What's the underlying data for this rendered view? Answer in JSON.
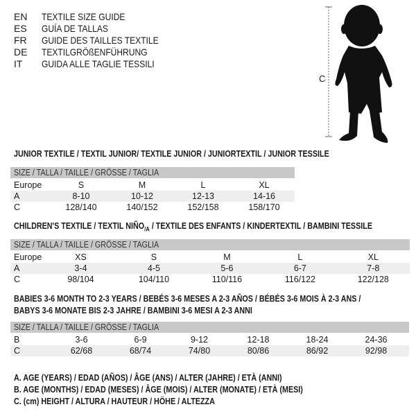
{
  "languages": [
    {
      "code": "EN",
      "text": "TEXTILE SIZE GUIDE"
    },
    {
      "code": "ES",
      "text": "GUÍA DE TALLAS"
    },
    {
      "code": "FR",
      "text": "GUIDE DES TAILLES TEXTILE"
    },
    {
      "code": "DE",
      "text": "TEXTILGRÖßENFÜHRUNG"
    },
    {
      "code": "IT",
      "text": "GUIDA ALLE TAGLIE TESSILI"
    }
  ],
  "figure": {
    "measure_label": "C",
    "silhouette": "baby-silhouette"
  },
  "header_label": "SIZE / TALLA / TAILLE / GRÖSSE / TAGLIA",
  "junior": {
    "title": "JUNIOR TEXTILE / TEXTIL JUNIOR/ TEXTILE JUNIOR / JUNIORTEXTIL / JUNIOR TESSILE",
    "rows": [
      {
        "label": "Europe",
        "values": [
          "S",
          "M",
          "L",
          "XL"
        ]
      },
      {
        "label": "A",
        "values": [
          "8-10",
          "10-12",
          "12-13",
          "14-16"
        ]
      },
      {
        "label": "C",
        "values": [
          "128/140",
          "140/152",
          "152/158",
          "158/170"
        ]
      }
    ]
  },
  "children": {
    "title_a": "CHILDREN'S TEXTILE / TEXTIL NIÑO",
    "title_sub": "/A",
    "title_b": " / TEXTILE DES ENFANTS / KINDERTEXTIL / BAMBINI TESSILE",
    "rows": [
      {
        "label": "Europe",
        "values": [
          "XS",
          "S",
          "M",
          "L",
          "XL"
        ]
      },
      {
        "label": "A",
        "values": [
          "3-4",
          "4-5",
          "5-6",
          "6-7",
          "7-8"
        ]
      },
      {
        "label": "C",
        "values": [
          "98/104",
          "104/110",
          "110/116",
          "116/122",
          "122/128"
        ]
      }
    ]
  },
  "babies": {
    "title_line1": "BABIES 3-6 MONTH TO 2-3 YEARS / BEBÉS 3-6 MESES A 2-3 AÑOS / BÉBÉS 3-6 MOIS À 2-3 ANS /",
    "title_line2": "BABYS 3-6 MONATE BIS 2-3 JAHRE / BAMBINI 3-6 MESI A 2-3 ANNI",
    "rows": [
      {
        "label": "B",
        "values": [
          "3-6",
          "6-9",
          "9-12",
          "12-18",
          "18-24",
          "24-36"
        ]
      },
      {
        "label": "C",
        "values": [
          "62/68",
          "68/74",
          "74/80",
          "80/86",
          "86/92",
          "92/98"
        ]
      }
    ]
  },
  "legend": [
    "A. AGE (YEARS) / EDAD (AÑOS) / ÂGE (ANS) / ALTER (JAHRE) / ETÀ (ANNI)",
    "B. AGE (MONTHS) / EDAD (MESES) / ÂGE (MOIS) / ALTER (MONATE) / ETÀ (MESI)",
    "C. (cm) HEIGHT / ALTURA / HAUTEUR / HÖHE / ALTEZZA"
  ]
}
